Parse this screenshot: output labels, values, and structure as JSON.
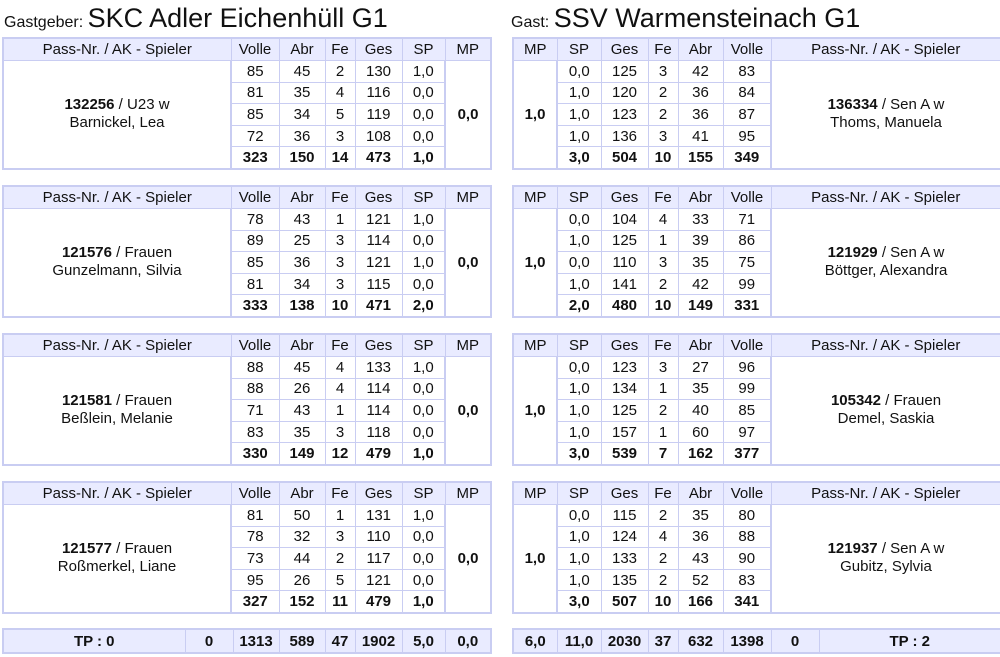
{
  "home": {
    "role_label": "Gastgeber:",
    "team_name": "SKC Adler Eichenhüll G1",
    "headers": [
      "Pass-Nr. / AK - Spieler",
      "Volle",
      "Abr",
      "Fe",
      "Ges",
      "SP",
      "MP"
    ],
    "players": [
      {
        "pass": "132256",
        "ak": "U23 w",
        "name": "Barnickel, Lea",
        "mp": "0,0",
        "rounds": [
          [
            "85",
            "45",
            "2",
            "130",
            "1,0"
          ],
          [
            "81",
            "35",
            "4",
            "116",
            "0,0"
          ],
          [
            "85",
            "34",
            "5",
            "119",
            "0,0"
          ],
          [
            "72",
            "36",
            "3",
            "108",
            "0,0"
          ]
        ],
        "sum": [
          "323",
          "150",
          "14",
          "473",
          "1,0"
        ]
      },
      {
        "pass": "121576",
        "ak": "Frauen",
        "name": "Gunzelmann, Silvia",
        "mp": "0,0",
        "rounds": [
          [
            "78",
            "43",
            "1",
            "121",
            "1,0"
          ],
          [
            "89",
            "25",
            "3",
            "114",
            "0,0"
          ],
          [
            "85",
            "36",
            "3",
            "121",
            "1,0"
          ],
          [
            "81",
            "34",
            "3",
            "115",
            "0,0"
          ]
        ],
        "sum": [
          "333",
          "138",
          "10",
          "471",
          "2,0"
        ]
      },
      {
        "pass": "121581",
        "ak": "Frauen",
        "name": "Beßlein, Melanie",
        "mp": "0,0",
        "rounds": [
          [
            "88",
            "45",
            "4",
            "133",
            "1,0"
          ],
          [
            "88",
            "26",
            "4",
            "114",
            "0,0"
          ],
          [
            "71",
            "43",
            "1",
            "114",
            "0,0"
          ],
          [
            "83",
            "35",
            "3",
            "118",
            "0,0"
          ]
        ],
        "sum": [
          "330",
          "149",
          "12",
          "479",
          "1,0"
        ]
      },
      {
        "pass": "121577",
        "ak": "Frauen",
        "name": "Roßmerkel, Liane",
        "mp": "0,0",
        "rounds": [
          [
            "81",
            "50",
            "1",
            "131",
            "1,0"
          ],
          [
            "78",
            "32",
            "3",
            "110",
            "0,0"
          ],
          [
            "73",
            "44",
            "2",
            "117",
            "0,0"
          ],
          [
            "95",
            "26",
            "5",
            "121",
            "0,0"
          ]
        ],
        "sum": [
          "327",
          "152",
          "11",
          "479",
          "1,0"
        ]
      }
    ],
    "totals": [
      "TP : 0",
      "0",
      "1313",
      "589",
      "47",
      "1902",
      "5,0",
      "0,0"
    ]
  },
  "guest": {
    "role_label": "Gast:",
    "team_name": "SSV Warmensteinach G1",
    "headers": [
      "MP",
      "SP",
      "Ges",
      "Fe",
      "Abr",
      "Volle",
      "Pass-Nr. / AK - Spieler"
    ],
    "players": [
      {
        "pass": "136334",
        "ak": "Sen A w",
        "name": "Thoms, Manuela",
        "mp": "1,0",
        "rounds": [
          [
            "0,0",
            "125",
            "3",
            "42",
            "83"
          ],
          [
            "1,0",
            "120",
            "2",
            "36",
            "84"
          ],
          [
            "1,0",
            "123",
            "2",
            "36",
            "87"
          ],
          [
            "1,0",
            "136",
            "3",
            "41",
            "95"
          ]
        ],
        "sum": [
          "3,0",
          "504",
          "10",
          "155",
          "349"
        ]
      },
      {
        "pass": "121929",
        "ak": "Sen A w",
        "name": "Böttger, Alexandra",
        "mp": "1,0",
        "rounds": [
          [
            "0,0",
            "104",
            "4",
            "33",
            "71"
          ],
          [
            "1,0",
            "125",
            "1",
            "39",
            "86"
          ],
          [
            "0,0",
            "110",
            "3",
            "35",
            "75"
          ],
          [
            "1,0",
            "141",
            "2",
            "42",
            "99"
          ]
        ],
        "sum": [
          "2,0",
          "480",
          "10",
          "149",
          "331"
        ]
      },
      {
        "pass": "105342",
        "ak": "Frauen",
        "name": "Demel, Saskia",
        "mp": "1,0",
        "rounds": [
          [
            "0,0",
            "123",
            "3",
            "27",
            "96"
          ],
          [
            "1,0",
            "134",
            "1",
            "35",
            "99"
          ],
          [
            "1,0",
            "125",
            "2",
            "40",
            "85"
          ],
          [
            "1,0",
            "157",
            "1",
            "60",
            "97"
          ]
        ],
        "sum": [
          "3,0",
          "539",
          "7",
          "162",
          "377"
        ]
      },
      {
        "pass": "121937",
        "ak": "Sen A w",
        "name": "Gubitz, Sylvia",
        "mp": "1,0",
        "rounds": [
          [
            "0,0",
            "115",
            "2",
            "35",
            "80"
          ],
          [
            "1,0",
            "124",
            "4",
            "36",
            "88"
          ],
          [
            "1,0",
            "133",
            "2",
            "43",
            "90"
          ],
          [
            "1,0",
            "135",
            "2",
            "52",
            "83"
          ]
        ],
        "sum": [
          "3,0",
          "507",
          "10",
          "166",
          "341"
        ]
      }
    ],
    "totals": [
      "6,0",
      "11,0",
      "2030",
      "37",
      "632",
      "1398",
      "0",
      "TP : 2"
    ]
  }
}
